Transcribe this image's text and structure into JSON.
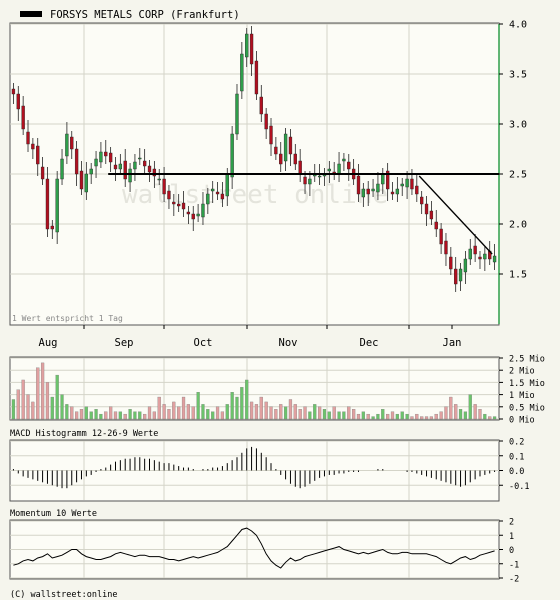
{
  "chart_data": {
    "type": "candlestick",
    "legend": {
      "label": "FORSYS METALS CORP (Frankfurt)",
      "color": "#000000",
      "placement": "top-left"
    },
    "note": "1 Wert entspricht 1 Tag",
    "watermark": "wallstreet online",
    "footer": "(C) wallstreet:online",
    "colors": {
      "up": "#2e9e4a",
      "down": "#b01020",
      "volume_up": "#6cc36c",
      "volume_down": "#e0a0a0",
      "plot_bg": "#fcfcf6",
      "grid": "#d4d4c8"
    },
    "x_months": [
      "Aug",
      "Sep",
      "Oct",
      "Nov",
      "Dec",
      "Jan"
    ],
    "price": {
      "ylim": [
        1.0,
        4.0
      ],
      "yticks": [
        "1.5",
        "2.0",
        "2.5",
        "3.0",
        "3.5",
        "4.0"
      ],
      "closes": [
        3.3,
        3.15,
        2.95,
        2.8,
        2.75,
        2.6,
        2.45,
        1.95,
        1.95,
        2.45,
        2.65,
        2.9,
        2.75,
        2.5,
        2.35,
        2.5,
        2.55,
        2.65,
        2.72,
        2.68,
        2.62,
        2.55,
        2.6,
        2.45,
        2.55,
        2.62,
        2.66,
        2.58,
        2.52,
        2.48,
        2.45,
        2.3,
        2.25,
        2.2,
        2.18,
        2.15,
        2.1,
        2.05,
        2.1,
        2.2,
        2.3,
        2.35,
        2.3,
        2.25,
        2.5,
        2.9,
        3.3,
        3.7,
        3.9,
        3.6,
        3.3,
        3.1,
        2.95,
        2.8,
        2.7,
        2.6,
        2.9,
        2.7,
        2.6,
        2.5,
        2.4,
        2.45,
        2.5,
        2.48,
        2.5,
        2.55,
        2.5,
        2.6,
        2.65,
        2.55,
        2.45,
        2.3,
        2.35,
        2.3,
        2.35,
        2.4,
        2.5,
        2.35,
        2.3,
        2.35,
        2.4,
        2.45,
        2.35,
        2.3,
        2.2,
        2.1,
        2.05,
        1.95,
        1.8,
        1.7,
        1.55,
        1.4,
        1.55,
        1.65,
        1.75,
        1.7,
        1.65,
        1.7,
        1.65,
        1.68
      ],
      "hlines": [
        {
          "y": 2.5
        }
      ],
      "trendlines": [
        {
          "x1": 84,
          "y1": 2.48,
          "x2": 99,
          "y2": 1.7
        }
      ]
    },
    "volume": {
      "title": "",
      "unit": "Mio",
      "ylim": [
        0,
        2.5
      ],
      "yticks": [
        "0 Mio",
        "0.5 Mio",
        "1 Mio",
        "1.5 Mio",
        "2 Mio",
        "2.5 Mio"
      ],
      "values": [
        0.8,
        1.2,
        1.6,
        1.0,
        0.7,
        2.1,
        2.3,
        1.5,
        0.9,
        1.8,
        1.0,
        0.6,
        0.5,
        0.3,
        0.4,
        0.5,
        0.3,
        0.4,
        0.2,
        0.3,
        0.5,
        0.3,
        0.3,
        0.2,
        0.4,
        0.3,
        0.3,
        0.2,
        0.5,
        0.3,
        0.9,
        0.6,
        0.4,
        0.7,
        0.5,
        0.9,
        0.6,
        0.5,
        1.1,
        0.6,
        0.4,
        0.3,
        0.5,
        0.3,
        0.6,
        1.1,
        0.9,
        1.3,
        1.6,
        0.7,
        0.6,
        0.9,
        0.7,
        0.5,
        0.4,
        0.6,
        0.5,
        0.8,
        0.6,
        0.4,
        0.5,
        0.3,
        0.6,
        0.5,
        0.4,
        0.3,
        0.5,
        0.3,
        0.3,
        0.5,
        0.4,
        0.2,
        0.3,
        0.2,
        0.1,
        0.2,
        0.4,
        0.2,
        0.3,
        0.2,
        0.3,
        0.2,
        0.1,
        0.2,
        0.1,
        0.1,
        0.1,
        0.2,
        0.3,
        0.5,
        0.9,
        0.6,
        0.4,
        0.3,
        1.0,
        0.6,
        0.4,
        0.2,
        0.1,
        0.1
      ]
    },
    "macd": {
      "title": "MACD Histogramm 12-26-9 Werte",
      "ylim": [
        -0.2,
        0.2
      ],
      "yticks": [
        "-0.1",
        "0.0",
        "0.1",
        "0.2"
      ],
      "values": [
        0.01,
        -0.02,
        -0.04,
        -0.05,
        -0.06,
        -0.07,
        -0.08,
        -0.09,
        -0.1,
        -0.11,
        -0.12,
        -0.12,
        -0.1,
        -0.08,
        -0.06,
        -0.04,
        -0.03,
        -0.01,
        0.01,
        0.02,
        0.04,
        0.06,
        0.07,
        0.08,
        0.08,
        0.09,
        0.09,
        0.08,
        0.08,
        0.07,
        0.06,
        0.05,
        0.05,
        0.04,
        0.03,
        0.02,
        0.02,
        0.01,
        0.0,
        0.01,
        0.01,
        0.02,
        0.02,
        0.03,
        0.05,
        0.07,
        0.09,
        0.12,
        0.15,
        0.16,
        0.15,
        0.12,
        0.09,
        0.05,
        0.01,
        -0.03,
        -0.06,
        -0.09,
        -0.11,
        -0.12,
        -0.11,
        -0.09,
        -0.07,
        -0.05,
        -0.04,
        -0.03,
        -0.03,
        -0.02,
        -0.02,
        -0.01,
        -0.01,
        -0.01,
        0.0,
        0.0,
        0.0,
        0.01,
        0.01,
        0.0,
        0.0,
        0.0,
        0.0,
        -0.01,
        -0.01,
        -0.02,
        -0.03,
        -0.04,
        -0.05,
        -0.06,
        -0.07,
        -0.08,
        -0.09,
        -0.1,
        -0.11,
        -0.1,
        -0.08,
        -0.06,
        -0.04,
        -0.03,
        -0.02,
        -0.01
      ]
    },
    "momentum": {
      "title": "Momentum 10 Werte",
      "ylim": [
        -2,
        2
      ],
      "yticks": [
        "-2",
        "-1",
        "0",
        "1",
        "2"
      ],
      "values": [
        -1.1,
        -1.0,
        -0.8,
        -0.7,
        -0.8,
        -0.6,
        -0.5,
        -0.3,
        -0.6,
        -0.5,
        -0.4,
        -0.2,
        0.0,
        0.0,
        -0.3,
        -0.5,
        -0.6,
        -0.7,
        -0.7,
        -0.6,
        -0.5,
        -0.3,
        -0.2,
        -0.3,
        -0.4,
        -0.5,
        -0.4,
        -0.4,
        -0.5,
        -0.5,
        -0.5,
        -0.6,
        -0.7,
        -0.7,
        -0.8,
        -0.7,
        -0.6,
        -0.5,
        -0.6,
        -0.5,
        -0.4,
        -0.3,
        -0.2,
        0.0,
        0.2,
        0.6,
        1.0,
        1.4,
        1.5,
        1.3,
        1.0,
        0.4,
        -0.3,
        -0.8,
        -1.1,
        -1.3,
        -0.9,
        -0.6,
        -0.8,
        -0.7,
        -0.5,
        -0.4,
        -0.3,
        -0.2,
        -0.1,
        0.0,
        0.1,
        0.2,
        0.0,
        -0.1,
        -0.2,
        -0.3,
        -0.2,
        -0.3,
        -0.2,
        -0.1,
        0.0,
        -0.2,
        -0.3,
        -0.3,
        -0.2,
        -0.2,
        -0.3,
        -0.3,
        -0.3,
        -0.3,
        -0.4,
        -0.5,
        -0.7,
        -0.9,
        -1.0,
        -0.8,
        -0.6,
        -0.5,
        -0.7,
        -0.6,
        -0.4,
        -0.3,
        -0.2,
        -0.1
      ]
    }
  }
}
